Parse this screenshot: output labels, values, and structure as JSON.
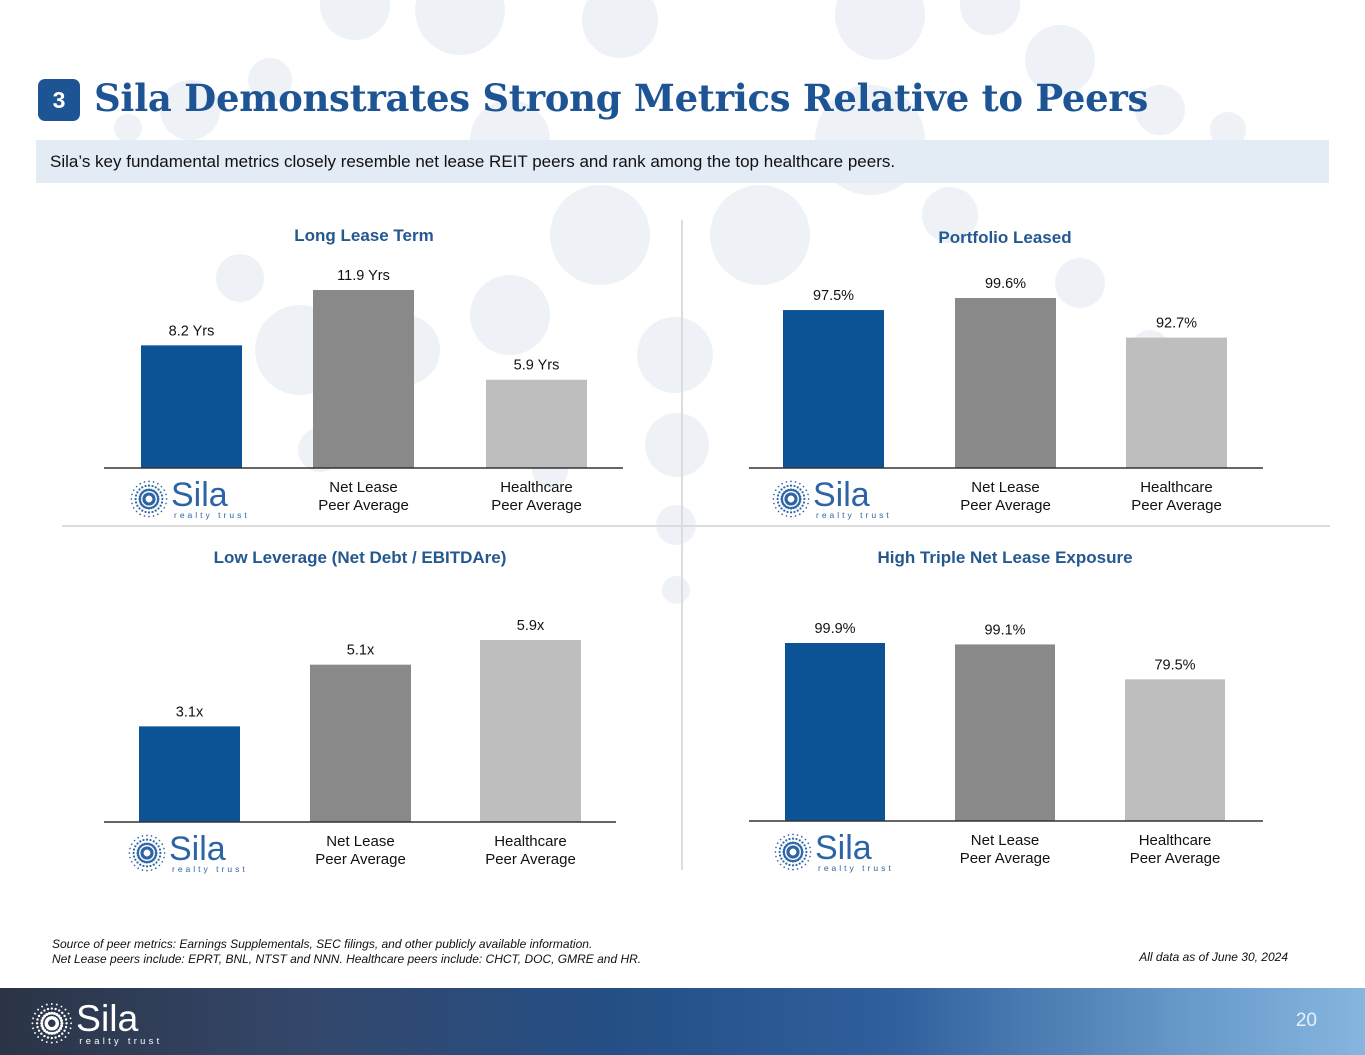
{
  "header": {
    "section_number": "3",
    "title": "Sila Demonstrates Strong Metrics Relative to Peers",
    "subtitle": "Sila’s key fundamental metrics closely resemble net lease REIT peers and rank among the top healthcare peers."
  },
  "brand": {
    "name": "Sila",
    "tagline": "realty trust",
    "colors": {
      "sila": "#0b5394",
      "net_lease": "#898989",
      "healthcare": "#bebebe",
      "title": "#1d5594"
    }
  },
  "categories": [
    {
      "key": "sila",
      "label_line1": "",
      "label_line2": ""
    },
    {
      "key": "net_lease",
      "label_line1": "Net Lease",
      "label_line2": "Peer Average"
    },
    {
      "key": "healthcare",
      "label_line1": "Healthcare",
      "label_line2": "Peer Average"
    }
  ],
  "chart_data": [
    {
      "type": "bar",
      "title": "Long Lease Term",
      "categories": [
        "Sila",
        "Net Lease Peer Average",
        "Healthcare Peer Average"
      ],
      "values": [
        8.2,
        11.9,
        5.9
      ],
      "labels": [
        "8.2 Yrs",
        "11.9 Yrs",
        "5.9 Yrs"
      ],
      "unit": "Yrs",
      "xlabel": "",
      "ylabel": "",
      "ylim": [
        0,
        12.5
      ]
    },
    {
      "type": "bar",
      "title": "Portfolio Leased",
      "categories": [
        "Sila",
        "Net Lease Peer Average",
        "Healthcare Peer Average"
      ],
      "values": [
        97.5,
        99.6,
        92.7
      ],
      "labels": [
        "97.5%",
        "99.6%",
        "92.7%"
      ],
      "unit": "%",
      "xlabel": "",
      "ylabel": "",
      "ylim": [
        70,
        102
      ]
    },
    {
      "type": "bar",
      "title": "Low Leverage (Net Debt / EBITDAre)",
      "categories": [
        "Sila",
        "Net Lease Peer Average",
        "Healthcare Peer Average"
      ],
      "values": [
        3.1,
        5.1,
        5.9
      ],
      "labels": [
        "3.1x",
        "5.1x",
        "5.9x"
      ],
      "unit": "x",
      "xlabel": "",
      "ylabel": "",
      "ylim": [
        0,
        6.8
      ]
    },
    {
      "type": "bar",
      "title": "High Triple Net Lease Exposure",
      "categories": [
        "Sila",
        "Net Lease Peer Average",
        "Healthcare Peer Average"
      ],
      "values": [
        99.9,
        99.1,
        79.5
      ],
      "labels": [
        "99.9%",
        "99.1%",
        "79.5%"
      ],
      "unit": "%",
      "xlabel": "",
      "ylabel": "",
      "ylim": [
        0,
        112
      ]
    }
  ],
  "footer": {
    "source_line1": "Source of peer metrics: Earnings Supplementals, SEC filings, and other publicly available information.",
    "source_line2": "Net Lease peers include: EPRT, BNL, NTST and NNN. Healthcare peers include: CHCT, DOC, GMRE and HR.",
    "as_of": "All data as of June 30, 2024",
    "page_number": "20"
  }
}
